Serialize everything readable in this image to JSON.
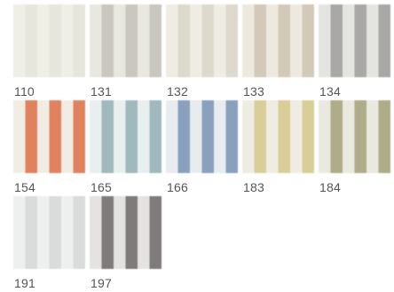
{
  "swatches": [
    {
      "code": "110",
      "base": "#efefe7",
      "stripe": "#e6e6dd"
    },
    {
      "code": "131",
      "base": "#e8e7e0",
      "stripe": "#c9c7bf"
    },
    {
      "code": "132",
      "base": "#efede3",
      "stripe": "#ddd9cd"
    },
    {
      "code": "133",
      "base": "#ede9df",
      "stripe": "#d2c9b8"
    },
    {
      "code": "134",
      "base": "#e4e4e1",
      "stripe": "#a9a8a6"
    },
    {
      "code": "154",
      "base": "#f1ede5",
      "stripe": "#e0825d"
    },
    {
      "code": "165",
      "base": "#e9efef",
      "stripe": "#9fb9bd"
    },
    {
      "code": "166",
      "base": "#e8ecef",
      "stripe": "#8aa1bd"
    },
    {
      "code": "183",
      "base": "#efede3",
      "stripe": "#d9cd98"
    },
    {
      "code": "184",
      "base": "#e9e9df",
      "stripe": "#afac88"
    },
    {
      "code": "191",
      "base": "#eef0ef",
      "stripe": "#d9dcdb"
    },
    {
      "code": "197",
      "base": "#e4e3e1",
      "stripe": "#7f7b7a"
    }
  ]
}
